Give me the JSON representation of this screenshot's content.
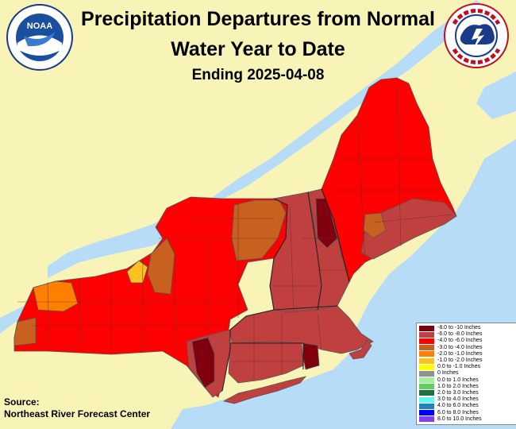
{
  "header": {
    "title_line1": "Precipitation Departures from Normal",
    "title_line2": "Water Year to Date",
    "subtitle": "Ending 2025-04-08"
  },
  "logos": {
    "noaa": {
      "name": "noaa-logo",
      "center_text": "NOAA",
      "ring_text_top": "NATIONAL OCEANIC AND ATMOSPHERIC ADMINISTRATION",
      "ring_text_bottom": "U.S. DEPARTMENT OF COMMERCE"
    },
    "nws": {
      "name": "nws-logo",
      "ring_text": "NATIONAL WEATHER SERVICE"
    }
  },
  "source": {
    "label": "Source:",
    "value": "Northeast River Forecast Center"
  },
  "colors": {
    "land_outside": "#f8f4b8",
    "water": "#b6dcf8",
    "county_border": "#555555"
  },
  "legend": [
    {
      "label": "-8.0 to -10 Inches",
      "color": "#800010"
    },
    {
      "label": "-6.0 to -8.0 Inches",
      "color": "#c04040"
    },
    {
      "label": "-4.0 to -6.0 Inches",
      "color": "#ff0000"
    },
    {
      "label": "-3.0 to -4.0 Inches",
      "color": "#c86020"
    },
    {
      "label": "-2.0 to -1.0 Inches",
      "color": "#ff8000"
    },
    {
      "label": "-1.0 to -2.0 Inches",
      "color": "#ffc020"
    },
    {
      "label": "0.0 to -1.0 Inches",
      "color": "#ffff00"
    },
    {
      "label": "0 Inches",
      "color": "#909090"
    },
    {
      "label": "0.0 to 1.0 Inches",
      "color": "#a0f0a0"
    },
    {
      "label": "1.0 to 2.0 Inches",
      "color": "#60d060"
    },
    {
      "label": "2.0 to 3.0 Inches",
      "color": "#207040"
    },
    {
      "label": "3.0 to 4.0 Inches",
      "color": "#60f8f8"
    },
    {
      "label": "4.0 to 6.0 Inches",
      "color": "#2080c0"
    },
    {
      "label": "6.0 to 8.0 Inches",
      "color": "#0000ff"
    },
    {
      "label": "8.0 to 10.0 Inches",
      "color": "#8040f0"
    }
  ]
}
